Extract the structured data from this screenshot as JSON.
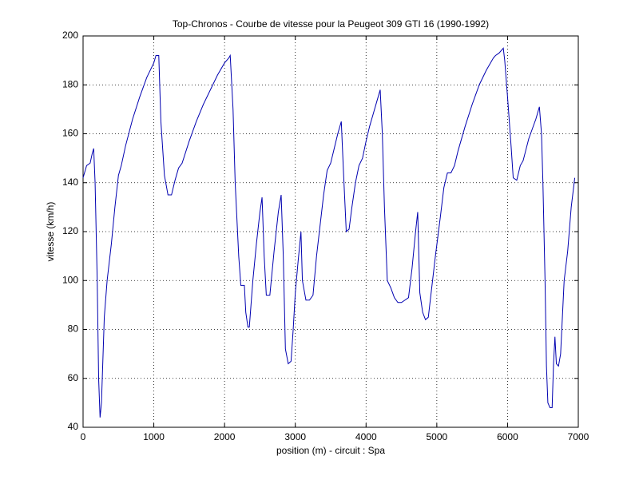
{
  "chart_data": {
    "type": "line",
    "title": "Top-Chronos - Courbe de vitesse pour la Peugeot 309 GTI 16 (1990-1992)",
    "x_label": "position (m) - circuit : Spa",
    "y_label": "vitesse (km/h)",
    "x": [
      0,
      50,
      100,
      130,
      150,
      170,
      200,
      220,
      240,
      260,
      300,
      340,
      400,
      450,
      500,
      540,
      600,
      700,
      800,
      900,
      1000,
      1030,
      1070,
      1100,
      1150,
      1200,
      1250,
      1300,
      1350,
      1400,
      1500,
      1600,
      1700,
      1800,
      1900,
      2000,
      2060,
      2080,
      2120,
      2150,
      2200,
      2230,
      2280,
      2300,
      2330,
      2350,
      2400,
      2450,
      2500,
      2530,
      2560,
      2590,
      2640,
      2700,
      2760,
      2800,
      2830,
      2860,
      2900,
      2940,
      2970,
      3000,
      3040,
      3080,
      3100,
      3150,
      3200,
      3250,
      3300,
      3360,
      3400,
      3450,
      3500,
      3550,
      3600,
      3650,
      3680,
      3720,
      3760,
      3800,
      3850,
      3900,
      3950,
      4000,
      4050,
      4100,
      4150,
      4200,
      4230,
      4260,
      4300,
      4350,
      4400,
      4450,
      4500,
      4550,
      4600,
      4650,
      4700,
      4730,
      4760,
      4800,
      4840,
      4880,
      4920,
      4980,
      5050,
      5100,
      5150,
      5200,
      5250,
      5300,
      5400,
      5500,
      5600,
      5700,
      5800,
      5830,
      5880,
      5940,
      5960,
      6000,
      6050,
      6080,
      6130,
      6180,
      6220,
      6300,
      6400,
      6450,
      6480,
      6500,
      6530,
      6550,
      6570,
      6600,
      6630,
      6650,
      6670,
      6690,
      6720,
      6750,
      6800,
      6850,
      6900,
      6950
    ],
    "series": [
      {
        "name": "vitesse",
        "color": "#0000b0",
        "values": [
          142,
          147,
          148,
          152,
          154,
          140,
          100,
          60,
          44,
          50,
          85,
          100,
          115,
          130,
          143,
          147,
          155,
          166,
          175,
          183,
          189,
          192,
          192,
          165,
          143,
          135,
          135,
          141,
          146,
          148,
          157,
          165,
          172,
          178,
          184,
          189,
          191,
          192,
          170,
          140,
          110,
          98,
          98,
          87,
          81,
          81,
          100,
          115,
          128,
          134,
          110,
          94,
          94,
          112,
          128,
          135,
          110,
          72,
          66,
          67,
          80,
          95,
          108,
          120,
          100,
          92,
          92,
          94,
          110,
          125,
          135,
          145,
          148,
          154,
          160,
          165,
          145,
          120,
          121,
          130,
          140,
          147,
          150,
          157,
          163,
          168,
          173,
          178,
          160,
          130,
          100,
          97,
          93,
          91,
          91,
          92,
          93,
          105,
          120,
          128,
          95,
          87,
          84,
          85,
          95,
          110,
          126,
          138,
          144,
          144,
          147,
          153,
          163,
          172,
          180,
          186,
          191,
          192,
          193,
          195,
          190,
          175,
          155,
          142,
          141,
          147,
          149,
          158,
          166,
          171,
          160,
          140,
          100,
          65,
          50,
          48,
          48,
          66,
          77,
          66,
          65,
          70,
          100,
          112,
          130,
          142
        ]
      }
    ],
    "xlim": [
      0,
      7000
    ],
    "xticks": [
      0,
      1000,
      2000,
      3000,
      4000,
      5000,
      6000,
      7000
    ],
    "ylim": [
      40,
      200
    ],
    "yticks": [
      40,
      60,
      80,
      100,
      120,
      140,
      160,
      180,
      200
    ],
    "grid": true
  }
}
